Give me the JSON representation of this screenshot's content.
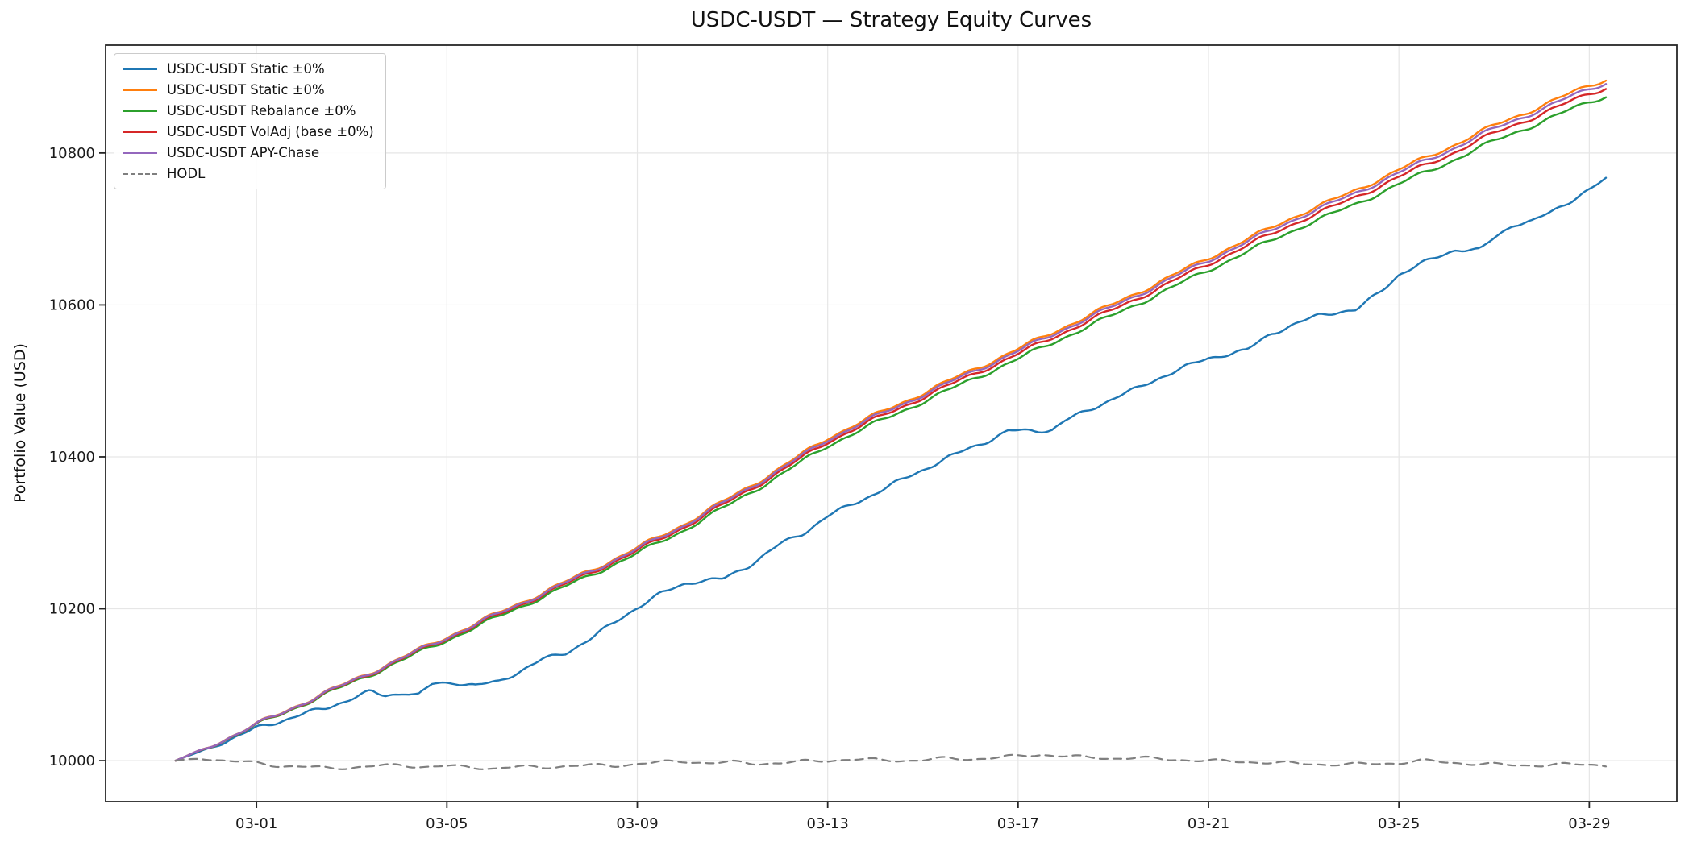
{
  "title": "USDC-USDT — Strategy Equity Curves",
  "chart_data": {
    "type": "line",
    "title": "USDC-USDT — Strategy Equity Curves",
    "xlabel": "",
    "ylabel": "Portfolio Value (USD)",
    "grid": true,
    "legend_position": "upper left",
    "x_unit": "days relative to 03-01",
    "xlim": [
      -3.17,
      29.84
    ],
    "ylim": [
      9946,
      10942
    ],
    "yticks": [
      10000,
      10200,
      10400,
      10600,
      10800
    ],
    "xticks": [
      {
        "d": 0,
        "label": "03-01"
      },
      {
        "d": 4,
        "label": "03-05"
      },
      {
        "d": 8,
        "label": "03-09"
      },
      {
        "d": 12,
        "label": "03-13"
      },
      {
        "d": 16,
        "label": "03-17"
      },
      {
        "d": 20,
        "label": "03-21"
      },
      {
        "d": 24,
        "label": "03-25"
      },
      {
        "d": 28,
        "label": "03-29"
      }
    ],
    "series": [
      {
        "name": "USDC-USDT Static ±0%",
        "color": "#1f77b4",
        "style": "solid",
        "points": [
          [
            -1.7,
            10000
          ],
          [
            -1,
            10016
          ],
          [
            0,
            10043
          ],
          [
            0.5,
            10052
          ],
          [
            1,
            10062
          ],
          [
            1.5,
            10070
          ],
          [
            2,
            10082
          ],
          [
            2.4,
            10091
          ],
          [
            2.7,
            10085
          ],
          [
            3.1,
            10090
          ],
          [
            3.4,
            10086
          ],
          [
            3.7,
            10101
          ],
          [
            4.2,
            10103
          ],
          [
            4.6,
            10099
          ],
          [
            5.1,
            10104
          ],
          [
            5.5,
            10117
          ],
          [
            6,
            10133
          ],
          [
            6.5,
            10142
          ],
          [
            7,
            10160
          ],
          [
            7.5,
            10181
          ],
          [
            8,
            10202
          ],
          [
            8.5,
            10220
          ],
          [
            9,
            10233
          ],
          [
            9.3,
            10237
          ],
          [
            9.8,
            10239
          ],
          [
            10.3,
            10255
          ],
          [
            11,
            10285
          ],
          [
            11.5,
            10300
          ],
          [
            12,
            10322
          ],
          [
            12.5,
            10337
          ],
          [
            13,
            10352
          ],
          [
            13.5,
            10368
          ],
          [
            14,
            10383
          ],
          [
            14.5,
            10398
          ],
          [
            15,
            10412
          ],
          [
            15.4,
            10422
          ],
          [
            15.8,
            10434
          ],
          [
            16.7,
            10435
          ],
          [
            17,
            10448
          ],
          [
            17.5,
            10462
          ],
          [
            18,
            10477
          ],
          [
            18.5,
            10490
          ],
          [
            19,
            10505
          ],
          [
            19.5,
            10518
          ],
          [
            20,
            10530
          ],
          [
            20.3,
            10534
          ],
          [
            20.8,
            10540
          ],
          [
            21.3,
            10562
          ],
          [
            21.8,
            10574
          ],
          [
            22.3,
            10586
          ],
          [
            22.7,
            10591
          ],
          [
            23.1,
            10593
          ],
          [
            23.6,
            10617
          ],
          [
            24,
            10640
          ],
          [
            24.5,
            10655
          ],
          [
            25,
            10668
          ],
          [
            25.2,
            10673
          ],
          [
            25.7,
            10672
          ],
          [
            26,
            10688
          ],
          [
            26.4,
            10706
          ],
          [
            26.8,
            10710
          ],
          [
            27.2,
            10722
          ],
          [
            27.6,
            10737
          ],
          [
            28,
            10752
          ],
          [
            28.35,
            10765
          ]
        ]
      },
      {
        "name": "USDC-USDT Static ±0%",
        "color": "#ff7f0e",
        "style": "solid",
        "points": [
          [
            -1.7,
            10000
          ],
          [
            -1,
            10018
          ],
          [
            0,
            10048
          ],
          [
            1,
            10077
          ],
          [
            2,
            10105
          ],
          [
            3,
            10134
          ],
          [
            4,
            10163
          ],
          [
            5,
            10192
          ],
          [
            6,
            10221
          ],
          [
            7,
            10250
          ],
          [
            8,
            10280
          ],
          [
            9,
            10312
          ],
          [
            10,
            10348
          ],
          [
            11,
            10385
          ],
          [
            12,
            10425
          ],
          [
            13,
            10455
          ],
          [
            14,
            10484
          ],
          [
            15,
            10513
          ],
          [
            16,
            10542
          ],
          [
            17,
            10572
          ],
          [
            18,
            10601
          ],
          [
            19,
            10631
          ],
          [
            20,
            10662
          ],
          [
            21,
            10692
          ],
          [
            22,
            10722
          ],
          [
            23,
            10748
          ],
          [
            24,
            10778
          ],
          [
            25,
            10806
          ],
          [
            26,
            10836
          ],
          [
            27,
            10862
          ],
          [
            28,
            10889
          ],
          [
            28.35,
            10897
          ]
        ]
      },
      {
        "name": "USDC-USDT Rebalance ±0%",
        "color": "#2ca02c",
        "style": "solid",
        "points": [
          [
            -1.7,
            10000
          ],
          [
            -1,
            10017.5
          ],
          [
            0,
            10046.8
          ],
          [
            1,
            10075
          ],
          [
            2,
            10102.3
          ],
          [
            3,
            10130.6
          ],
          [
            4,
            10158.8
          ],
          [
            5,
            10187.1
          ],
          [
            6,
            10215.4
          ],
          [
            7,
            10243.6
          ],
          [
            8,
            10272.9
          ],
          [
            9,
            10304.2
          ],
          [
            10,
            10339.4
          ],
          [
            11,
            10375.7
          ],
          [
            12,
            10415
          ],
          [
            13,
            10444.2
          ],
          [
            14,
            10472.5
          ],
          [
            15,
            10500.8
          ],
          [
            16,
            10529
          ],
          [
            17,
            10558.3
          ],
          [
            18,
            10586.6
          ],
          [
            19,
            10615.8
          ],
          [
            20,
            10646.1
          ],
          [
            21,
            10675.4
          ],
          [
            22,
            10704.6
          ],
          [
            23,
            10729.9
          ],
          [
            24,
            10759.2
          ],
          [
            25,
            10786.5
          ],
          [
            26,
            10815.7
          ],
          [
            27,
            10841
          ],
          [
            28,
            10867.3
          ],
          [
            28.35,
            10875
          ]
        ]
      },
      {
        "name": "USDC-USDT VolAdj (base ±0%)",
        "color": "#d62728",
        "style": "solid",
        "points": [
          [
            -1.7,
            10000
          ],
          [
            -1,
            10017.7
          ],
          [
            0,
            10047.4
          ],
          [
            1,
            10076
          ],
          [
            2,
            10103.6
          ],
          [
            3,
            10132.3
          ],
          [
            4,
            10160.9
          ],
          [
            5,
            10189.5
          ],
          [
            6,
            10218.2
          ],
          [
            7,
            10246.8
          ],
          [
            8,
            10276.4
          ],
          [
            9,
            10308.1
          ],
          [
            10,
            10343.7
          ],
          [
            11,
            10380.4
          ],
          [
            12,
            10420
          ],
          [
            13,
            10449.6
          ],
          [
            14,
            10478.3
          ],
          [
            15,
            10506.9
          ],
          [
            16,
            10535.5
          ],
          [
            17,
            10565.2
          ],
          [
            18,
            10593.8
          ],
          [
            19,
            10623.4
          ],
          [
            20,
            10654.1
          ],
          [
            21,
            10683.7
          ],
          [
            22,
            10713.3
          ],
          [
            23,
            10739
          ],
          [
            24,
            10768.6
          ],
          [
            25,
            10796.2
          ],
          [
            26,
            10825.9
          ],
          [
            27,
            10851.5
          ],
          [
            28,
            10878.1
          ],
          [
            28.35,
            10886
          ]
        ]
      },
      {
        "name": "USDC-USDT APY-Chase",
        "color": "#9467bd",
        "style": "solid",
        "points": [
          [
            -1.7,
            10000
          ],
          [
            -1,
            10017.9
          ],
          [
            0,
            10047.7
          ],
          [
            1,
            10076.6
          ],
          [
            2,
            10104.4
          ],
          [
            3,
            10133.3
          ],
          [
            4,
            10162.1
          ],
          [
            5,
            10191
          ],
          [
            6,
            10219.8
          ],
          [
            7,
            10248.7
          ],
          [
            8,
            10278.5
          ],
          [
            9,
            10310.4
          ],
          [
            10,
            10346.2
          ],
          [
            11,
            10383.1
          ],
          [
            12,
            10422.9
          ],
          [
            13,
            10452.8
          ],
          [
            14,
            10481.6
          ],
          [
            15,
            10510.5
          ],
          [
            16,
            10539.3
          ],
          [
            17,
            10569.2
          ],
          [
            18,
            10598
          ],
          [
            19,
            10627.9
          ],
          [
            20,
            10658.8
          ],
          [
            21,
            10688.6
          ],
          [
            22,
            10718.5
          ],
          [
            23,
            10744.3
          ],
          [
            24,
            10774.2
          ],
          [
            25,
            10802
          ],
          [
            26,
            10831.9
          ],
          [
            27,
            10857.7
          ],
          [
            28,
            10884.6
          ],
          [
            28.35,
            10892.5
          ]
        ]
      },
      {
        "name": "HODL",
        "color": "#7f7f7f",
        "style": "dashed",
        "points": [
          [
            -1.7,
            10000
          ],
          [
            -1.2,
            10003
          ],
          [
            -0.5,
            9999
          ],
          [
            0,
            9997
          ],
          [
            0.5,
            9993
          ],
          [
            1,
            9992
          ],
          [
            1.5,
            9990
          ],
          [
            2,
            9991
          ],
          [
            2.5,
            9993
          ],
          [
            3,
            9994
          ],
          [
            3.5,
            9992
          ],
          [
            4,
            9993
          ],
          [
            4.5,
            9991
          ],
          [
            5,
            9990
          ],
          [
            5.5,
            9992
          ],
          [
            6,
            9991
          ],
          [
            6.5,
            9993
          ],
          [
            7,
            9994
          ],
          [
            7.5,
            9993
          ],
          [
            8,
            9996
          ],
          [
            8.5,
            9998
          ],
          [
            9,
            9999
          ],
          [
            9.5,
            9997
          ],
          [
            10,
            9998
          ],
          [
            10.5,
            9996
          ],
          [
            11,
            9997
          ],
          [
            11.5,
            9999
          ],
          [
            12,
            10000
          ],
          [
            12.5,
            10002
          ],
          [
            13,
            10001
          ],
          [
            13.5,
            10000
          ],
          [
            14,
            10001
          ],
          [
            14.5,
            10003
          ],
          [
            15,
            10002
          ],
          [
            15.5,
            10004
          ],
          [
            16,
            10006
          ],
          [
            16.5,
            10008
          ],
          [
            17,
            10006
          ],
          [
            17.5,
            10004
          ],
          [
            18,
            10003
          ],
          [
            18.5,
            10004
          ],
          [
            19,
            10002
          ],
          [
            19.5,
            10001
          ],
          [
            20,
            10000
          ],
          [
            20.5,
            9999
          ],
          [
            21,
            9998
          ],
          [
            21.5,
            9997
          ],
          [
            22,
            9996
          ],
          [
            22.5,
            9995
          ],
          [
            23,
            9995
          ],
          [
            23.5,
            9996
          ],
          [
            24,
            9997
          ],
          [
            24.5,
            10000
          ],
          [
            25,
            9998
          ],
          [
            25.5,
            9996
          ],
          [
            26,
            9995
          ],
          [
            26.5,
            9994
          ],
          [
            27,
            9994
          ],
          [
            27.5,
            9995
          ],
          [
            28,
            9995
          ],
          [
            28.35,
            9994
          ]
        ]
      }
    ]
  }
}
